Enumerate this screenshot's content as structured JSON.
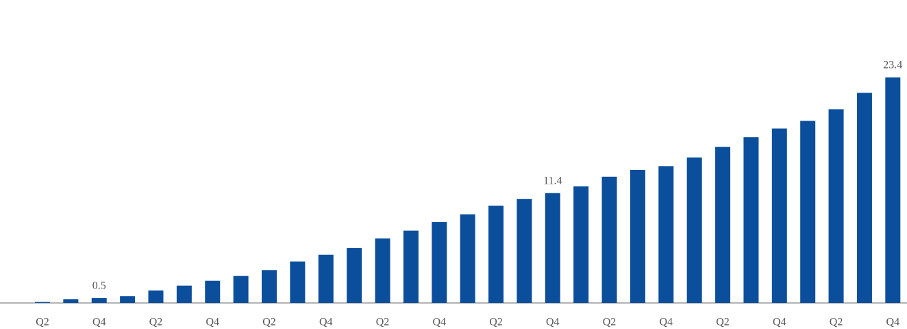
{
  "chart_data": {
    "type": "bar",
    "categories": [
      "Q2",
      null,
      "Q4",
      null,
      "Q2",
      null,
      "Q4",
      null,
      "Q2",
      null,
      "Q4",
      null,
      "Q2",
      null,
      "Q4",
      null,
      "Q2",
      null,
      "Q4",
      null,
      "Q2",
      null,
      "Q4",
      null,
      "Q2",
      null,
      "Q4",
      null,
      "Q2",
      null,
      "Q4"
    ],
    "values": [
      0.1,
      0.4,
      0.5,
      0.7,
      1.3,
      1.8,
      2.3,
      2.8,
      3.4,
      4.3,
      5.0,
      5.7,
      6.7,
      7.5,
      8.4,
      9.2,
      10.1,
      10.8,
      11.4,
      12.1,
      13.1,
      13.8,
      14.2,
      15.1,
      16.2,
      17.2,
      18.1,
      18.9,
      20.1,
      21.8,
      23.4
    ],
    "value_labels": [
      null,
      null,
      "0.5",
      null,
      null,
      null,
      null,
      null,
      null,
      null,
      null,
      null,
      null,
      null,
      null,
      null,
      null,
      null,
      "11.4",
      null,
      null,
      null,
      null,
      null,
      null,
      null,
      null,
      null,
      null,
      null,
      "23.4"
    ],
    "color": "#0b4f9c",
    "ylim": [
      0,
      25
    ]
  }
}
